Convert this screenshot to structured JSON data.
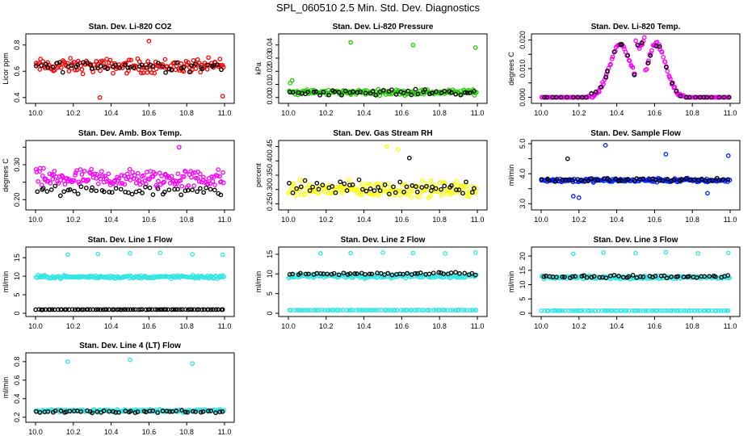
{
  "page_title": "SPL_060510  2.5 Min. Std. Dev. Diagnostics",
  "colors": {
    "red": "#ff0000",
    "green": "#22cc00",
    "magenta": "#ff00ff",
    "yellow": "#ffff00",
    "blue": "#0022ff",
    "cyan": "#33e5e5",
    "black": "#000000"
  },
  "chart_data": [
    {
      "id": "co2",
      "type": "scatter",
      "title": "Stan. Dev. Li-820 CO2",
      "ylabel": "Licor ppm",
      "xlim": [
        10.0,
        11.0
      ],
      "ylim": [
        0.38,
        0.86
      ],
      "xticks": [
        "10.0",
        "10.2",
        "10.4",
        "10.6",
        "10.8",
        "11.0"
      ],
      "yticks": [
        0.4,
        0.6,
        0.8
      ],
      "ytick_labels": [
        "0.4",
        "0.6",
        "0.8"
      ],
      "series": [
        {
          "color": "red",
          "base": 0.64,
          "spread": 0.08,
          "n": 160,
          "outliers": [
            [
              10.34,
              0.4
            ],
            [
              10.6,
              0.83
            ],
            [
              10.99,
              0.41
            ]
          ]
        },
        {
          "color": "black",
          "base": 0.64,
          "spread": 0.06,
          "n": 50
        }
      ]
    },
    {
      "id": "pressure",
      "type": "scatter",
      "title": "Stan. Dev. Li-820 Pressure",
      "ylabel": "kPa",
      "xlim": [
        10.0,
        11.0
      ],
      "ylim": [
        -0.002,
        0.046
      ],
      "xticks": [
        "10.0",
        "10.2",
        "10.4",
        "10.6",
        "10.8",
        "11.0"
      ],
      "yticks": [
        0.0,
        0.01,
        0.02,
        0.03,
        0.04
      ],
      "ytick_labels": [
        "0.00",
        "0.01",
        "0.02",
        "0.03",
        "0.04"
      ],
      "series": [
        {
          "color": "green",
          "base": 0.004,
          "spread": 0.003,
          "n": 160,
          "outliers": [
            [
              10.33,
              0.042
            ],
            [
              10.66,
              0.04
            ],
            [
              10.99,
              0.038
            ],
            [
              10.01,
              0.011
            ],
            [
              10.02,
              0.013
            ]
          ]
        },
        {
          "color": "black",
          "base": 0.004,
          "spread": 0.003,
          "n": 50
        }
      ]
    },
    {
      "id": "temp",
      "type": "scatter",
      "title": "Stan. Dev. Li-820 Temp.",
      "ylabel": "degrees C",
      "xlim": [
        10.0,
        11.0
      ],
      "ylim": [
        -0.001,
        0.021
      ],
      "xticks": [
        "10.0",
        "10.2",
        "10.4",
        "10.6",
        "10.8",
        "11.0"
      ],
      "yticks": [
        0.0,
        0.005,
        0.01,
        0.015,
        0.02
      ],
      "ytick_labels": [
        "0.000",
        "",
        "0.010",
        "",
        "0.020"
      ],
      "series": [
        {
          "color": "magenta",
          "curve": "twohump",
          "n": 180
        },
        {
          "color": "black",
          "curve": "twohump",
          "n": 40
        }
      ]
    },
    {
      "id": "boxtemp",
      "type": "scatter",
      "title": "Stan. Dev. Amb. Box Temp.",
      "ylabel": "degrees C",
      "xlim": [
        10.0,
        11.0
      ],
      "ylim": [
        0.18,
        0.36
      ],
      "xticks": [
        "10.0",
        "10.2",
        "10.4",
        "10.6",
        "10.8",
        "11.0"
      ],
      "yticks": [
        0.2,
        0.25,
        0.3,
        0.35
      ],
      "ytick_labels": [
        "0.20",
        "",
        "0.30",
        ""
      ],
      "series": [
        {
          "color": "magenta",
          "base": 0.26,
          "spread": 0.04,
          "n": 170,
          "outliers": [
            [
              10.76,
              0.35
            ]
          ]
        },
        {
          "color": "black",
          "base": 0.225,
          "spread": 0.02,
          "n": 50
        }
      ]
    },
    {
      "id": "rh",
      "type": "scatter",
      "title": "Stan. Dev. Gas Stream RH",
      "ylabel": "percent",
      "xlim": [
        10.0,
        11.0
      ],
      "ylim": [
        0.24,
        0.46
      ],
      "xticks": [
        "10.0",
        "10.2",
        "10.4",
        "10.6",
        "10.8",
        "11.0"
      ],
      "yticks": [
        0.25,
        0.3,
        0.35,
        0.4,
        0.45
      ],
      "ytick_labels": [
        "0.25",
        "0.30",
        "0.35",
        "0.40",
        "0.45"
      ],
      "series": [
        {
          "color": "yellow",
          "base": 0.3,
          "spread": 0.04,
          "n": 170,
          "outliers": [
            [
              10.52,
              0.45
            ],
            [
              10.58,
              0.44
            ]
          ]
        },
        {
          "color": "black",
          "base": 0.31,
          "spread": 0.04,
          "n": 50,
          "outliers": [
            [
              10.64,
              0.41
            ]
          ]
        }
      ]
    },
    {
      "id": "sampleflow",
      "type": "scatter",
      "title": "Stan. Dev. Sample Flow",
      "ylabel": "ml/min",
      "xlim": [
        10.0,
        11.0
      ],
      "ylim": [
        2.9,
        5.0
      ],
      "xticks": [
        "10.0",
        "10.2",
        "10.4",
        "10.6",
        "10.8",
        "11.0"
      ],
      "yticks": [
        3.0,
        3.5,
        4.0,
        4.5,
        5.0
      ],
      "ytick_labels": [
        "3.0",
        "",
        "4.0",
        "",
        "5.0"
      ],
      "series": [
        {
          "color": "blue",
          "base": 3.78,
          "spread": 0.1,
          "n": 180,
          "outliers": [
            [
              10.34,
              4.95
            ],
            [
              10.17,
              3.25
            ],
            [
              10.2,
              3.2
            ],
            [
              10.66,
              4.65
            ],
            [
              10.88,
              3.35
            ],
            [
              10.99,
              4.6
            ]
          ]
        },
        {
          "color": "black",
          "base": 3.8,
          "spread": 0.08,
          "n": 50,
          "outliers": [
            [
              10.14,
              4.5
            ]
          ]
        }
      ]
    },
    {
      "id": "line1",
      "type": "scatter",
      "title": "Stan. Dev. Line 1 Flow",
      "ylabel": "ml/min",
      "xlim": [
        10.0,
        11.0
      ],
      "ylim": [
        0,
        17
      ],
      "xticks": [
        "10.0",
        "10.2",
        "10.4",
        "10.6",
        "10.8",
        "11.0"
      ],
      "yticks": [
        0,
        5,
        10,
        15
      ],
      "ytick_labels": [
        "0",
        "5",
        "10",
        "15"
      ],
      "series": [
        {
          "color": "cyan",
          "base": 9.8,
          "spread": 0.6,
          "n": 180,
          "outliers": [
            [
              10.17,
              15.8
            ],
            [
              10.33,
              16.0
            ],
            [
              10.5,
              16.2
            ],
            [
              10.66,
              16.3
            ],
            [
              10.83,
              15.9
            ],
            [
              10.99,
              15.8
            ]
          ]
        },
        {
          "color": "black",
          "base": 1.0,
          "spread": 0.05,
          "n": 80
        }
      ]
    },
    {
      "id": "line2",
      "type": "scatter",
      "title": "Stan. Dev. Line 2 Flow",
      "ylabel": "ml/min",
      "xlim": [
        10.0,
        11.0
      ],
      "ylim": [
        0,
        16
      ],
      "xticks": [
        "10.0",
        "10.2",
        "10.4",
        "10.6",
        "10.8",
        "11.0"
      ],
      "yticks": [
        0,
        5,
        10,
        15
      ],
      "ytick_labels": [
        "0",
        "5",
        "10",
        "15"
      ],
      "series": [
        {
          "color": "cyan",
          "base": 9.5,
          "spread": 0.8,
          "n": 170,
          "outliers": [
            [
              10.17,
              15.2
            ],
            [
              10.33,
              15.3
            ],
            [
              10.5,
              15.4
            ],
            [
              10.66,
              15.3
            ],
            [
              10.83,
              15.2
            ],
            [
              10.99,
              15.4
            ]
          ]
        },
        {
          "color": "cyan",
          "base": 0.8,
          "spread": 0.05,
          "n": 80
        },
        {
          "color": "black",
          "base": 10.0,
          "spread": 0.6,
          "n": 50
        }
      ]
    },
    {
      "id": "line3",
      "type": "scatter",
      "title": "Stan. Dev. Line 3 Flow",
      "ylabel": "ml/min",
      "xlim": [
        10.0,
        11.0
      ],
      "ylim": [
        0,
        22
      ],
      "xticks": [
        "10.0",
        "10.2",
        "10.4",
        "10.6",
        "10.8",
        "11.0"
      ],
      "yticks": [
        0,
        5,
        10,
        15,
        20
      ],
      "ytick_labels": [
        "0",
        "5",
        "10",
        "15",
        "20"
      ],
      "series": [
        {
          "color": "cyan",
          "base": 12.5,
          "spread": 0.8,
          "n": 170,
          "outliers": [
            [
              10.17,
              20.8
            ],
            [
              10.33,
              21.2
            ],
            [
              10.5,
              21.0
            ],
            [
              10.66,
              21.3
            ],
            [
              10.83,
              20.9
            ],
            [
              10.99,
              21.1
            ]
          ]
        },
        {
          "color": "cyan",
          "base": 0.9,
          "spread": 0.05,
          "n": 80
        },
        {
          "color": "black",
          "base": 12.8,
          "spread": 0.7,
          "n": 50
        }
      ]
    },
    {
      "id": "line4",
      "type": "scatter",
      "title": "Stan. Dev. Line 4 (LT) Flow",
      "ylabel": "ml/min",
      "xlim": [
        10.0,
        11.0
      ],
      "ylim": [
        0.18,
        0.86
      ],
      "xticks": [
        "10.0",
        "10.2",
        "10.4",
        "10.6",
        "10.8",
        "11.0"
      ],
      "yticks": [
        0.2,
        0.4,
        0.6,
        0.8
      ],
      "ytick_labels": [
        "0.2",
        "0.4",
        "0.6",
        "0.8"
      ],
      "series": [
        {
          "color": "cyan",
          "base": 0.27,
          "spread": 0.025,
          "n": 170,
          "outliers": [
            [
              10.17,
              0.8
            ],
            [
              10.5,
              0.82
            ],
            [
              10.83,
              0.78
            ]
          ]
        },
        {
          "color": "black",
          "base": 0.26,
          "spread": 0.02,
          "n": 50
        }
      ]
    }
  ]
}
